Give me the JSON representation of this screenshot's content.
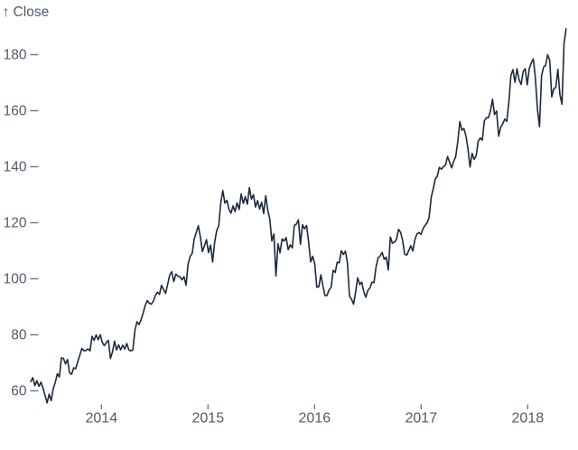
{
  "chart_data": {
    "type": "line",
    "y_axis_label": "↑ Close",
    "x_ticks": [
      2014,
      2015,
      2016,
      2017,
      2018
    ],
    "y_ticks": [
      60,
      80,
      100,
      120,
      140,
      160,
      180
    ],
    "x_start": 2013.337,
    "x_end": 2018.36,
    "interval": "weekly",
    "line_color": "#1c2a3d",
    "axis_text_color": "#4f5b68",
    "tick_mark_color": "#6e7883",
    "values": [
      63.3,
      64.71,
      61.89,
      63.59,
      61.6,
      63.12,
      60.9,
      58.3,
      55.7,
      58.8,
      56.5,
      60.71,
      62.99,
      66.08,
      64.92,
      71.76,
      71.57,
      69.6,
      71.17,
      66.41,
      65.9,
      68.2,
      67.9,
      70.4,
      72.7,
      75.14,
      74.29,
      74.37,
      74.99,
      74.26,
      79.44,
      78.0,
      80.0,
      78.2,
      80.01,
      77.28,
      76.13,
      77.24,
      78.01,
      71.51,
      73.9,
      77.71,
      74.6,
      76.4,
      74.6,
      76.3,
      74.9,
      76.9,
      74.6,
      74.23,
      74.7,
      81.71,
      84.65,
      83.65,
      85.36,
      87.73,
      90.43,
      92.22,
      91.28,
      90.91,
      91.98,
      94.03,
      95.22,
      94.43,
      97.67,
      96.13,
      94.74,
      97.98,
      101.32,
      102.5,
      98.97,
      101.66,
      100.96,
      100.75,
      99.62,
      100.73,
      97.67,
      105.22,
      108.0,
      109.01,
      114.18,
      116.47,
      118.93,
      115.0,
      109.73,
      111.78,
      113.99,
      109.33,
      112.01,
      105.99,
      112.98,
      117.16,
      118.93,
      127.08,
      131.5,
      127.0,
      128.0,
      124.8,
      123.4,
      126.0,
      124.0,
      127.1,
      124.75,
      130.28,
      126.9,
      129.3,
      126.6,
      132.54,
      128.4,
      130.0,
      125.6,
      127.9,
      124.9,
      127.3,
      123.28,
      129.62,
      124.5,
      121.3,
      113.5,
      116.0,
      101.0,
      112.5,
      109.27,
      114.21,
      113.45,
      114.71,
      110.38,
      112.12,
      111.04,
      119.08,
      119.5,
      121.06,
      112.34,
      119.3,
      117.81,
      119.03,
      113.18,
      106.03,
      108.03,
      105.26,
      96.96,
      97.13,
      101.42,
      97.34,
      94.02,
      93.99,
      96.04,
      96.91,
      103.01,
      102.26,
      105.92,
      105.67,
      109.99,
      108.66,
      109.85,
      105.68,
      93.74,
      92.72,
      90.9,
      95.22,
      100.35,
      97.92,
      98.83,
      95.33,
      93.4,
      95.89,
      96.68,
      98.78,
      98.66,
      104.21,
      107.48,
      108.18,
      109.36,
      106.94,
      107.73,
      103.13,
      114.92,
      112.71,
      113.05,
      114.06,
      117.63,
      116.6,
      113.72,
      108.84,
      108.43,
      110.06,
      111.79,
      109.9,
      113.95,
      115.97,
      116.52,
      115.82,
      117.91,
      119.04,
      120.0,
      121.95,
      129.08,
      132.12,
      135.72,
      136.66,
      139.78,
      139.14,
      139.99,
      140.64,
      143.66,
      141.6,
      139.6,
      141.9,
      143.65,
      148.96,
      156.1,
      153.06,
      153.61,
      151.0,
      146.3,
      139.9,
      144.8,
      142.6,
      143.9,
      149.04,
      150.27,
      149.5,
      156.39,
      157.48,
      157.5,
      159.86,
      164.05,
      158.63,
      159.88,
      150.9,
      154.12,
      155.3,
      156.99,
      156.25,
      163.05,
      172.5,
      174.67,
      170.15,
      174.97,
      171.05,
      169.37,
      173.97,
      175.01,
      169.23,
      175.0,
      177.09,
      178.46,
      171.51,
      160.5,
      154.3,
      172.43,
      175.55,
      176.21,
      179.98,
      178.02,
      164.94,
      167.78,
      168.34,
      174.73,
      165.72,
      162.32,
      183.83,
      189.2
    ]
  }
}
